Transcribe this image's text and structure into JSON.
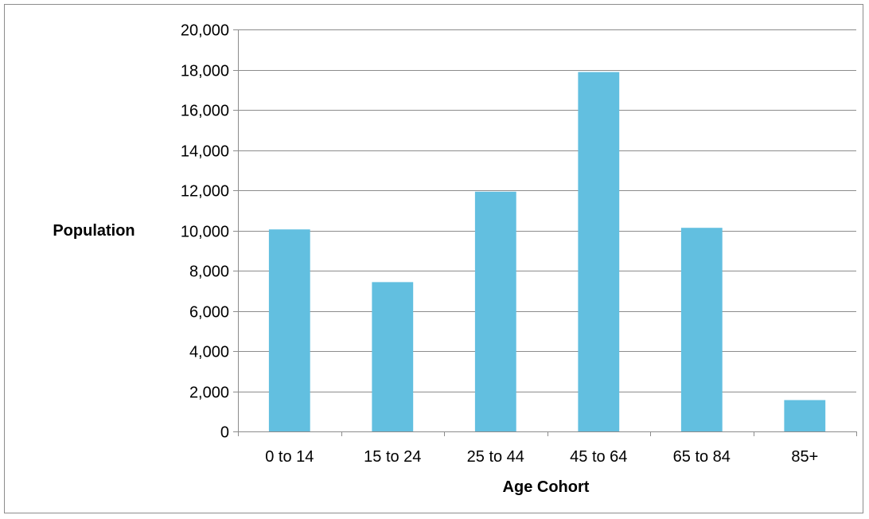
{
  "chart_data": {
    "type": "bar",
    "categories": [
      "0 to 14",
      "15 to 24",
      "25 to 44",
      "45 to 64",
      "65 to 84",
      "85+"
    ],
    "series": [
      {
        "values": [
          10050,
          7430,
          11930,
          17880,
          10130,
          1560
        ]
      }
    ],
    "xlabel": "Age Cohort",
    "ylabel": "Population",
    "ylim": [
      0,
      20000
    ],
    "yticks": [
      0,
      2000,
      4000,
      6000,
      8000,
      10000,
      12000,
      14000,
      16000,
      18000,
      20000
    ],
    "ytick_labels": [
      "0",
      "2,000",
      "4,000",
      "6,000",
      "8,000",
      "10,000",
      "12,000",
      "14,000",
      "16,000",
      "18,000",
      "20,000"
    ],
    "grid": true,
    "legend": "none",
    "bar_color": "#62bfe0",
    "grid_color": "#8c8c8c"
  }
}
